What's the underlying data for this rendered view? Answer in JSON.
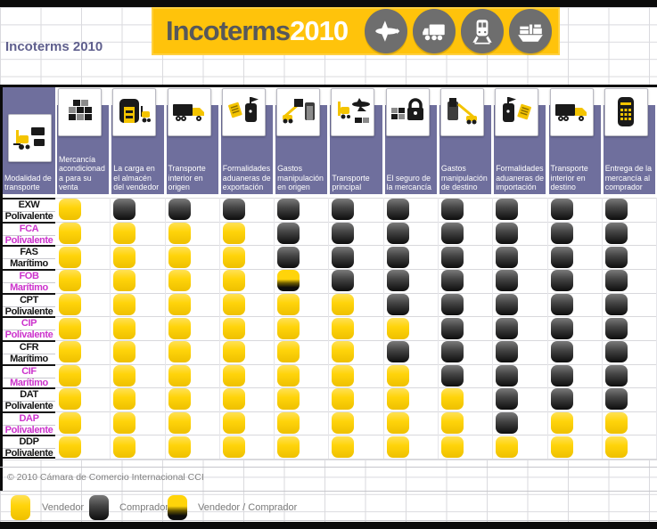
{
  "title_note": "Incoterms 2010",
  "banner": {
    "brand": "Incoterms",
    "year": "2010"
  },
  "chart_data": {
    "type": "table",
    "title": "Incoterms 2010",
    "row_header": "Modalidad de transporte",
    "columns": [
      "Mercancía acondicionada para su venta",
      "La carga en el almacén del vendedor",
      "Transporte interior en origen",
      "Formalidades aduaneras de exportación",
      "Gastos manipulación en origen",
      "Transporte principal",
      "El seguro de la mercancía",
      "Gastos manipulación de destino",
      "Formalidades aduaneras de importación",
      "Transporte interior en destino",
      "Entrega de la mercancía al comprador"
    ],
    "rows": [
      {
        "code": "EXW",
        "mode": "Polivalente",
        "highlight": false,
        "cells": [
          "V",
          "C",
          "C",
          "C",
          "C",
          "C",
          "C",
          "C",
          "C",
          "C",
          "C"
        ]
      },
      {
        "code": "FCA",
        "mode": "Polivalente",
        "highlight": true,
        "cells": [
          "V",
          "V",
          "V",
          "V",
          "C",
          "C",
          "C",
          "C",
          "C",
          "C",
          "C"
        ]
      },
      {
        "code": "FAS",
        "mode": "Marítimo",
        "highlight": false,
        "cells": [
          "V",
          "V",
          "V",
          "V",
          "C",
          "C",
          "C",
          "C",
          "C",
          "C",
          "C"
        ]
      },
      {
        "code": "FOB",
        "mode": "Marítimo",
        "highlight": true,
        "cells": [
          "V",
          "V",
          "V",
          "V",
          "VC",
          "C",
          "C",
          "C",
          "C",
          "C",
          "C"
        ]
      },
      {
        "code": "CPT",
        "mode": "Polivalente",
        "highlight": false,
        "cells": [
          "V",
          "V",
          "V",
          "V",
          "V",
          "V",
          "C",
          "C",
          "C",
          "C",
          "C"
        ]
      },
      {
        "code": "CIP",
        "mode": "Polivalente",
        "highlight": true,
        "cells": [
          "V",
          "V",
          "V",
          "V",
          "V",
          "V",
          "V",
          "C",
          "C",
          "C",
          "C"
        ]
      },
      {
        "code": "CFR",
        "mode": "Marítimo",
        "highlight": false,
        "cells": [
          "V",
          "V",
          "V",
          "V",
          "V",
          "V",
          "C",
          "C",
          "C",
          "C",
          "C"
        ]
      },
      {
        "code": "CIF",
        "mode": "Marítimo",
        "highlight": true,
        "cells": [
          "V",
          "V",
          "V",
          "V",
          "V",
          "V",
          "V",
          "C",
          "C",
          "C",
          "C"
        ]
      },
      {
        "code": "DAT",
        "mode": "Polivalente",
        "highlight": false,
        "cells": [
          "V",
          "V",
          "V",
          "V",
          "V",
          "V",
          "V",
          "V",
          "C",
          "C",
          "C"
        ]
      },
      {
        "code": "DAP",
        "mode": "Polivalente",
        "highlight": true,
        "cells": [
          "V",
          "V",
          "V",
          "V",
          "V",
          "V",
          "V",
          "V",
          "C",
          "V",
          "V"
        ]
      },
      {
        "code": "DDP",
        "mode": "Polivalente",
        "highlight": false,
        "cells": [
          "V",
          "V",
          "V",
          "V",
          "V",
          "V",
          "V",
          "V",
          "V",
          "V",
          "V"
        ]
      }
    ],
    "cell_values": {
      "V": "Vendedor",
      "C": "Comprador",
      "VC": "Vendedor / Comprador"
    }
  },
  "icons": {
    "corner": "forklift-packages-icon",
    "columns": [
      "stacked-boxes-icon",
      "warehouse-forklift-icon",
      "truck-icon",
      "customs-export-icon",
      "crane-loading-icon",
      "plane-forklift-icon",
      "lock-boxes-icon",
      "crane-unloading-icon",
      "customs-import-icon",
      "truck-icon",
      "delivery-building-icon"
    ],
    "banner": [
      "airplane-icon",
      "truck-icon",
      "train-icon",
      "cargo-ship-icon"
    ]
  },
  "legend": {
    "items": [
      {
        "key": "V",
        "label": "Vendedor"
      },
      {
        "key": "C",
        "label": "Comprador"
      },
      {
        "key": "VC",
        "label": "Vendedor / Comprador"
      }
    ]
  },
  "footer": {
    "copyright": "© 2010 Cámara de Comercio Internacional CCI"
  },
  "colors": {
    "vendedor": "#FFD40A",
    "comprador": "#2B2B2B",
    "header_bg": "#6F6F9D",
    "banner_bg": "#FFC30B",
    "banner_text": "#57585A",
    "highlight_code": "#CC33CC"
  }
}
